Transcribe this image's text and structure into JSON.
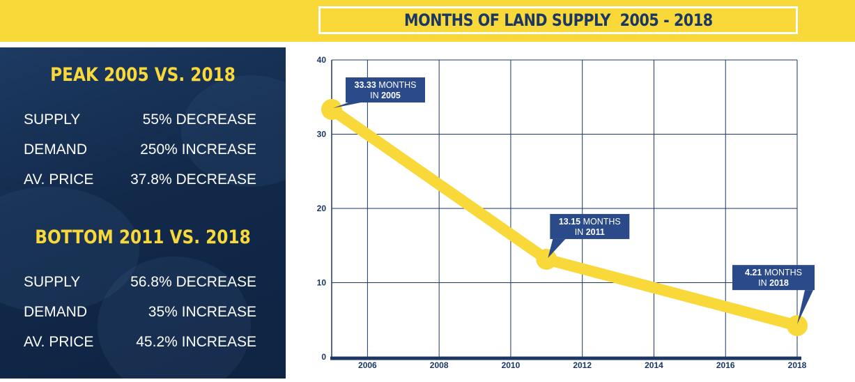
{
  "header": {
    "title": "MONTHS OF LAND SUPPLY  2005 - 2018"
  },
  "peak": {
    "heading": "PEAK 2005 VS. 2018",
    "rows": [
      {
        "label": "SUPPLY",
        "value": "55% DECREASE"
      },
      {
        "label": "DEMAND",
        "value": "250% INCREASE"
      },
      {
        "label": "AV. PRICE",
        "value": "37.8% DECREASE"
      }
    ]
  },
  "bottom": {
    "heading": "BOTTOM 2011 VS. 2018",
    "rows": [
      {
        "label": "SUPPLY",
        "value": "56.8% DECREASE"
      },
      {
        "label": "DEMAND",
        "value": "35% INCREASE"
      },
      {
        "label": "AV. PRICE",
        "value": "45.2% INCREASE"
      }
    ]
  },
  "colors": {
    "yellow": "#f9d83a",
    "navy": "#1b3764",
    "callout": "#2a4a8a",
    "grid": "#1b3764"
  },
  "chart_data": {
    "type": "line",
    "title": "MONTHS OF LAND SUPPLY  2005 - 2018",
    "xlabel": "",
    "ylabel": "",
    "x": [
      2005,
      2011,
      2018
    ],
    "series": [
      {
        "values": [
          33.33,
          13.15,
          4.21
        ]
      }
    ],
    "xlim": [
      2005,
      2018
    ],
    "ylim": [
      0,
      40
    ],
    "x_ticks": [
      2006,
      2008,
      2010,
      2012,
      2014,
      2016,
      2018
    ],
    "y_ticks": [
      0,
      10,
      20,
      30,
      40
    ],
    "grid": true,
    "annotations": [
      {
        "x": 2005,
        "y": 33.33,
        "value_text": "33.33",
        "unit_text": "MONTHS",
        "prefix": "IN",
        "year_text": "2005"
      },
      {
        "x": 2011,
        "y": 13.15,
        "value_text": "13.15",
        "unit_text": "MONTHS",
        "prefix": "IN",
        "year_text": "2011"
      },
      {
        "x": 2018,
        "y": 4.21,
        "value_text": "4.21",
        "unit_text": "MONTHS",
        "prefix": "IN",
        "year_text": "2018"
      }
    ]
  }
}
